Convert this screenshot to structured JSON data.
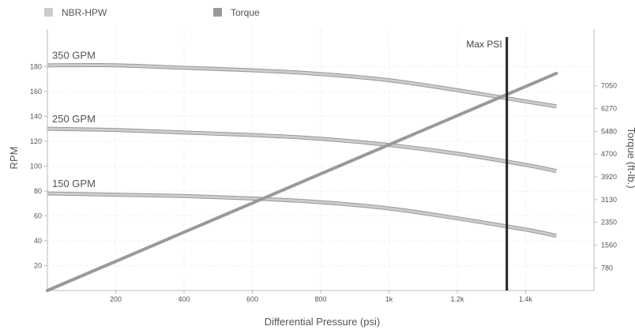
{
  "chart_data": {
    "type": "line",
    "legend": {
      "placement": "top-left",
      "entries": [
        {
          "name": "NBR-HPW",
          "color": "#cccccc"
        },
        {
          "name": "Torque",
          "color": "#999999"
        }
      ]
    },
    "xlabel": "Differential Pressure (psi)",
    "ylabel": "RPM",
    "y2label": "Torque (ft-lb.)",
    "xlim": [
      0,
      1600
    ],
    "ylim": [
      0,
      210
    ],
    "y2lim": [
      0,
      9000
    ],
    "x_ticks": [
      {
        "value": 200,
        "label": "200"
      },
      {
        "value": 400,
        "label": "400"
      },
      {
        "value": 600,
        "label": "600"
      },
      {
        "value": 800,
        "label": "800"
      },
      {
        "value": 1000,
        "label": "1k"
      },
      {
        "value": 1200,
        "label": "1.2k"
      },
      {
        "value": 1400,
        "label": "1.4k"
      }
    ],
    "y_ticks": [
      {
        "value": 20,
        "label": "20"
      },
      {
        "value": 40,
        "label": "40"
      },
      {
        "value": 60,
        "label": "60"
      },
      {
        "value": 80,
        "label": "80"
      },
      {
        "value": 100,
        "label": "100"
      },
      {
        "value": 120,
        "label": "120"
      },
      {
        "value": 140,
        "label": "140"
      },
      {
        "value": 160,
        "label": "160"
      },
      {
        "value": 180,
        "label": "180"
      }
    ],
    "y2_ticks": [
      {
        "value": 780,
        "label": "780"
      },
      {
        "value": 1560,
        "label": "1560"
      },
      {
        "value": 2350,
        "label": "2350"
      },
      {
        "value": 3130,
        "label": "3130"
      },
      {
        "value": 3920,
        "label": "3920"
      },
      {
        "value": 4700,
        "label": "4700"
      },
      {
        "value": 5480,
        "label": "5480"
      },
      {
        "value": 6270,
        "label": "6270"
      },
      {
        "value": 7050,
        "label": "7050"
      }
    ],
    "grid": true,
    "series": [
      {
        "name": "NBR-HPW",
        "label": "350 GPM",
        "axis": "left",
        "color": "#cccccc",
        "x": [
          0,
          200,
          400,
          600,
          800,
          1000,
          1200,
          1400,
          1490
        ],
        "y": [
          181,
          181,
          179,
          177,
          174,
          169,
          161,
          152,
          148
        ]
      },
      {
        "name": "NBR-HPW",
        "label": "250 GPM",
        "axis": "left",
        "color": "#cccccc",
        "x": [
          0,
          200,
          400,
          600,
          800,
          1000,
          1200,
          1400,
          1490
        ],
        "y": [
          130,
          129,
          127,
          125,
          122,
          117,
          110,
          101,
          96
        ]
      },
      {
        "name": "NBR-HPW",
        "label": "150 GPM",
        "axis": "left",
        "color": "#cccccc",
        "x": [
          0,
          200,
          400,
          600,
          800,
          1000,
          1200,
          1400,
          1490
        ],
        "y": [
          78,
          77,
          76,
          74,
          71,
          66,
          58,
          49,
          44
        ]
      },
      {
        "name": "Torque",
        "axis": "right",
        "color": "#999999",
        "x": [
          0,
          1490
        ],
        "y": [
          0,
          7480
        ]
      }
    ],
    "annotations": [
      {
        "type": "vline",
        "x": 1345,
        "label": "Max PSI",
        "color": "#222222"
      }
    ]
  }
}
